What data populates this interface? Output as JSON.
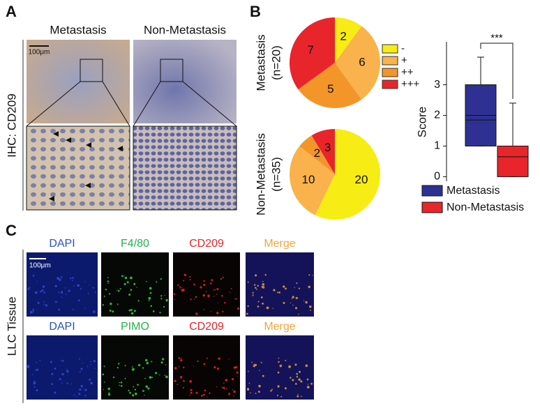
{
  "panel_a": {
    "label": "A",
    "columns": [
      "Metastasis",
      "Non-Metastasis"
    ],
    "scale_bar": "100μm",
    "row_label": "IHC: CD209"
  },
  "panel_b": {
    "label": "B"
  },
  "panel_c": {
    "label": "C",
    "row_label": "LLC Tissue",
    "scale_bar": "100μm",
    "rows": [
      [
        "DAPI",
        "F4/80",
        "CD209",
        "Merge"
      ],
      [
        "DAPI",
        "PIMO",
        "CD209",
        "Merge"
      ]
    ]
  },
  "chart_data": [
    {
      "type": "pie",
      "title": "Metastasis",
      "subtitle": "(n=20)",
      "categories": [
        "-",
        "+",
        "++",
        "+++"
      ],
      "values": [
        2,
        6,
        5,
        7
      ],
      "colors": [
        "#f7ec13",
        "#f9b24c",
        "#f4952a",
        "#e8252b"
      ],
      "legend": "right"
    },
    {
      "type": "pie",
      "title": "Non-Metastasis",
      "subtitle": "(n=35)",
      "values": [
        20,
        10,
        2,
        3
      ],
      "colors": [
        "#f7ec13",
        "#f9b24c",
        "#f4952a",
        "#e8252b"
      ]
    },
    {
      "type": "box",
      "ylabel": "Score",
      "ylim": [
        -0.15,
        4.4
      ],
      "yticks": [
        0,
        1,
        2,
        3
      ],
      "annotation": "***",
      "legend": "bottom",
      "series": [
        {
          "name": "Metastasis",
          "color": "#2e3192",
          "whisker_low": 1,
          "q1": 1,
          "median": 2,
          "q3": 3,
          "whisker_high": 3.9,
          "mean": 1.85
        },
        {
          "name": "Non-Metastasis",
          "color": "#e8252b",
          "whisker_low": 0,
          "q1": 0,
          "median": 0.65,
          "q3": 1,
          "whisker_high": 2.4
        }
      ]
    }
  ]
}
